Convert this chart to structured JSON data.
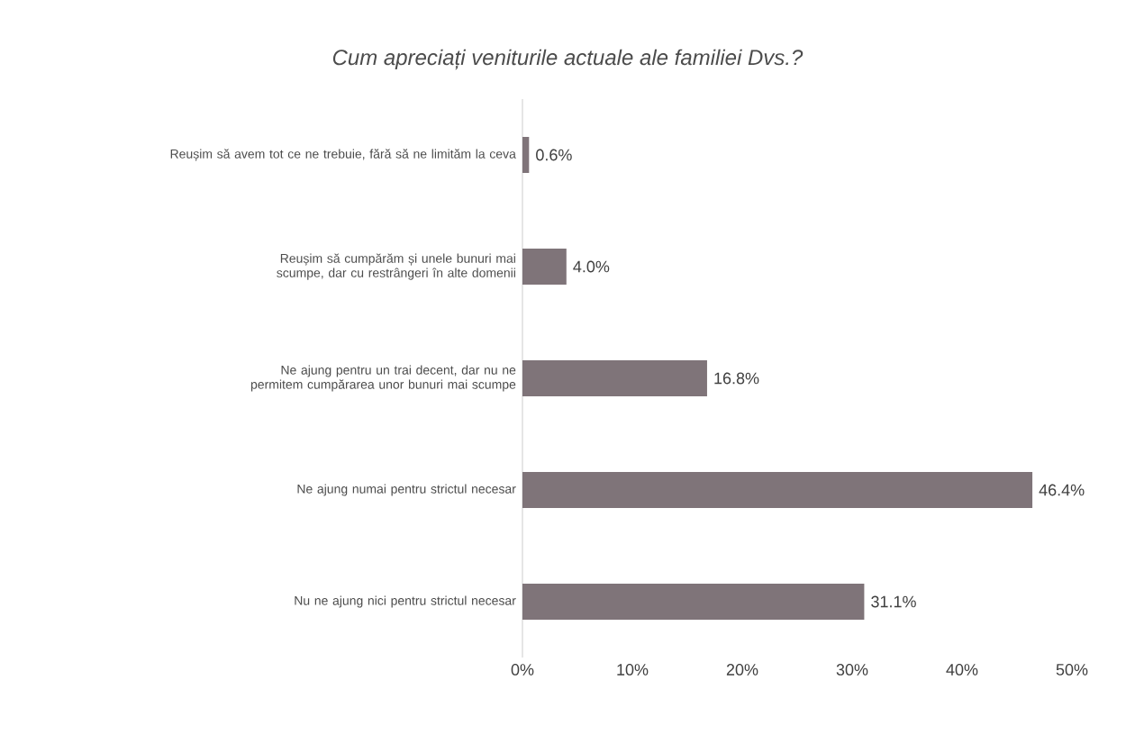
{
  "chart_data": {
    "type": "bar",
    "orientation": "horizontal",
    "title": "Cum apreciați veniturile actuale ale familiei Dvs.?",
    "categories": [
      "Reușim să avem tot ce ne trebuie, fără să ne limităm la ceva",
      "Reușim să cumpărăm și unele bunuri mai scumpe, dar cu restrângeri în alte domenii",
      "Ne ajung pentru un trai decent, dar nu ne permitem cumpărarea unor bunuri mai scumpe",
      "Ne ajung numai pentru strictul necesar",
      "Nu ne ajung nici pentru strictul necesar"
    ],
    "values": [
      0.6,
      4.0,
      16.8,
      46.4,
      31.1
    ],
    "value_labels": [
      "0.6%",
      "4.0%",
      "16.8%",
      "46.4%",
      "31.1%"
    ],
    "color": "#7f7479",
    "xlim": [
      0,
      50
    ],
    "xticks": [
      {
        "value": 0,
        "label": "0%"
      },
      {
        "value": 10,
        "label": "10%"
      },
      {
        "value": 20,
        "label": "20%"
      },
      {
        "value": 30,
        "label": "30%"
      },
      {
        "value": 40,
        "label": "40%"
      },
      {
        "value": 50,
        "label": "50%"
      }
    ],
    "relative": false
  }
}
